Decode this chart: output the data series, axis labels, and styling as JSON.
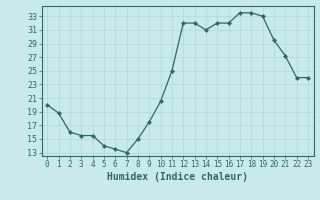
{
  "x": [
    0,
    1,
    2,
    3,
    4,
    5,
    6,
    7,
    8,
    9,
    10,
    11,
    12,
    13,
    14,
    15,
    16,
    17,
    18,
    19,
    20,
    21,
    22,
    23
  ],
  "y": [
    20.0,
    18.8,
    16.0,
    15.5,
    15.5,
    14.0,
    13.5,
    13.0,
    15.0,
    17.5,
    20.5,
    25.0,
    32.0,
    32.0,
    31.0,
    32.0,
    32.0,
    33.5,
    33.5,
    33.0,
    29.5,
    27.2,
    24.0,
    24.0
  ],
  "xlabel": "Humidex (Indice chaleur)",
  "line_color": "#2e6b5e",
  "bg_color": "#c8eaea",
  "grid_color": "#b0d8d8",
  "ylim": [
    12.5,
    34.5
  ],
  "yticks": [
    13,
    15,
    17,
    19,
    21,
    23,
    25,
    27,
    29,
    31,
    33
  ],
  "xlim": [
    -0.5,
    23.5
  ],
  "xtick_labels": [
    "0",
    "1",
    "2",
    "3",
    "4",
    "5",
    "6",
    "7",
    "8",
    "9",
    "10",
    "11",
    "12",
    "13",
    "14",
    "15",
    "16",
    "17",
    "18",
    "19",
    "20",
    "21",
    "22",
    "23"
  ]
}
